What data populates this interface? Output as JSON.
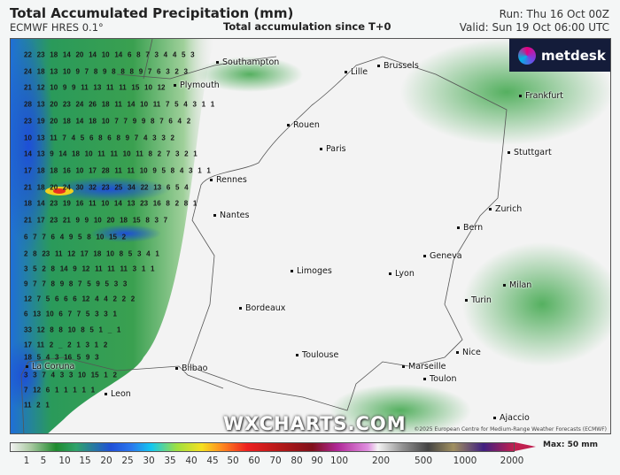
{
  "header": {
    "title": "Total Accumulated Precipitation (mm)",
    "model": "ECMWF HRES 0.1°",
    "subtitle": "Total accumulation since T+0",
    "run": "Run: Thu 16 Oct 00Z",
    "valid": "Valid: Sun 19 Oct 06:00 UTC"
  },
  "logo": {
    "text": "metdesk",
    "icon": "metdesk-star-icon"
  },
  "watermark": "WXCHARTS.COM",
  "copyright": "©2025 European Centre for Medium-Range Weather Forecasts (ECMWF)",
  "cities": [
    "Southampton",
    "Lille",
    "Brussels",
    "Plymouth",
    "Frankfurt",
    "Rouen",
    "Paris",
    "Stuttgart",
    "Rennes",
    "Nantes",
    "Zurich",
    "Bern",
    "Geneva",
    "Limoges",
    "Lyon",
    "Milan",
    "Turin",
    "Bordeaux",
    "Toulouse",
    "Nice",
    "Marseille",
    "Toulon",
    "Bilbao",
    "La Coruna",
    "Leon",
    "Ajaccio"
  ],
  "grid_values": [
    "22 23 18 14 20 14 10 14 6 8 7 3 4 4 5 3",
    "24 18 13 10 9 7 8 9 8 8 8 9 7 6 3 2 3",
    "21 12 10 9 9 11 13 11 11 15 10 12",
    "28 13 20 23 24 26 18 11 14 10 11 7 5 4 3 1 1",
    "23 19 20 18 14 18 10 7 7 9 9 8 7 6 4 2",
    "10 13 11 7 4 5 6 8 6 8 9 7 4 3 3 2",
    "14 13 9 14 18 10 11 11 10 11 8 2 7 3 2 1",
    "17 18 18 16 10 17 28 11 11 10 9 5 8 4 3 1 1",
    "21 18 20 24 30 32 23 25 34 22 13 6 5 4",
    "18 14 23 19 16 11 10 14 13 23 16 8 2 8 1",
    "21 17 23 21 9 9 10 20 18 15 8 3 7",
    "6 7 7 6 4 9 5 8 10 15 2",
    "2 8 23 11 12 17 18 10 8 5 3 4 1",
    "3 5 2 8 14 9 12 11 11 11 3 1 1",
    "9 7 7 8 9 8 7 5 9 5 3 3",
    "12 7 5 6 6 6 12 4 4 2 2 2",
    "6 13 10 6 7 7 5 3 3 1",
    "33 12 8 8 10 8 5 1 _ 1",
    "17 11 2 _ 2 1 3 1 2",
    "18 5 4 3 16 5 9 3",
    "3 3 7 4 3 3 10 15 1 2",
    "7 12 6 1 1 1 1 1",
    "11 2 1"
  ],
  "colorbar": {
    "ticks": [
      "1",
      "5",
      "10",
      "15",
      "20",
      "25",
      "30",
      "35",
      "40",
      "45",
      "50",
      "60",
      "70",
      "80",
      "90",
      "100",
      "200",
      "500",
      "1000",
      "2000"
    ],
    "max_label": "Max: 50 mm",
    "unit": "mm"
  }
}
